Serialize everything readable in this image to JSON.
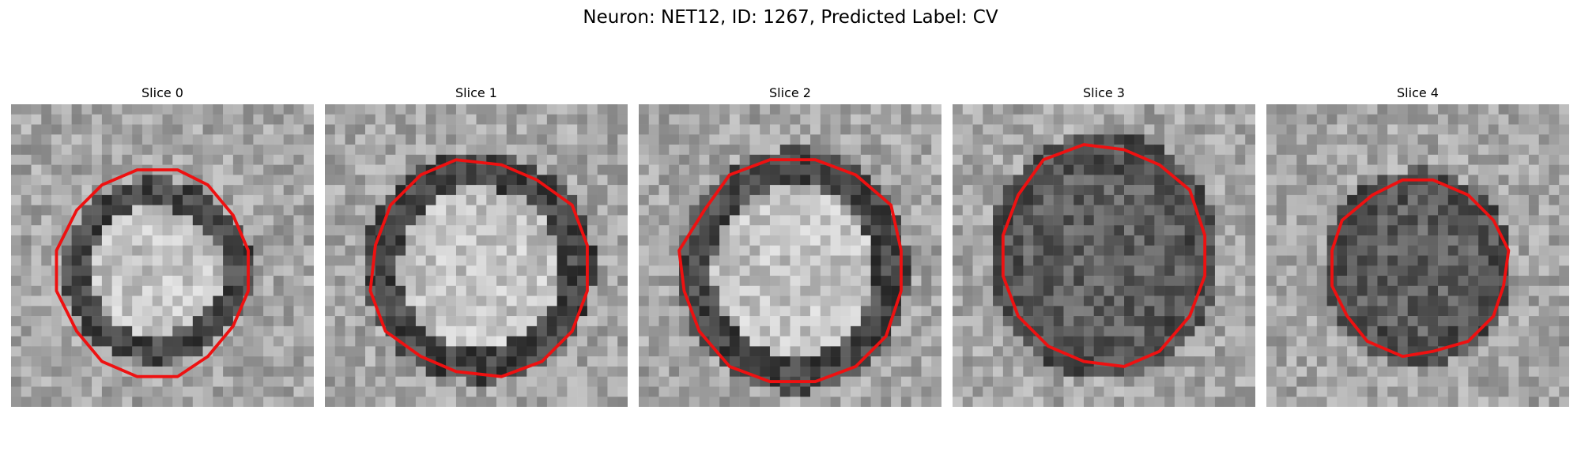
{
  "figure": {
    "title": "Neuron: NET12, ID: 1267, Predicted Label: CV"
  },
  "colors": {
    "outline": "#ee1111",
    "colormap": "grayscale"
  },
  "slices": [
    {
      "label": "Slice 0",
      "cell_center": [
        0.48,
        0.55
      ],
      "cell_radius": [
        0.28,
        0.27
      ],
      "contour_radius": [
        0.32,
        0.35
      ],
      "interior_tone": "bright",
      "rim_tone": "dark",
      "seed": 11
    },
    {
      "label": "Slice 1",
      "cell_center": [
        0.51,
        0.54
      ],
      "cell_radius": [
        0.34,
        0.34
      ],
      "contour_radius": [
        0.36,
        0.36
      ],
      "interior_tone": "bright",
      "rim_tone": "dark",
      "seed": 23
    },
    {
      "label": "Slice 2",
      "cell_center": [
        0.51,
        0.55
      ],
      "cell_radius": [
        0.34,
        0.36
      ],
      "contour_radius": [
        0.37,
        0.37
      ],
      "interior_tone": "bright",
      "rim_tone": "dark",
      "seed": 37
    },
    {
      "label": "Slice 3",
      "cell_center": [
        0.5,
        0.5
      ],
      "cell_radius": [
        0.34,
        0.36
      ],
      "contour_radius": [
        0.34,
        0.37
      ],
      "interior_tone": "dark",
      "rim_tone": "dark",
      "seed": 41
    },
    {
      "label": "Slice 4",
      "cell_center": [
        0.5,
        0.54
      ],
      "cell_radius": [
        0.28,
        0.29
      ],
      "contour_radius": [
        0.29,
        0.29
      ],
      "interior_tone": "dark",
      "rim_tone": "dark",
      "seed": 53
    }
  ]
}
